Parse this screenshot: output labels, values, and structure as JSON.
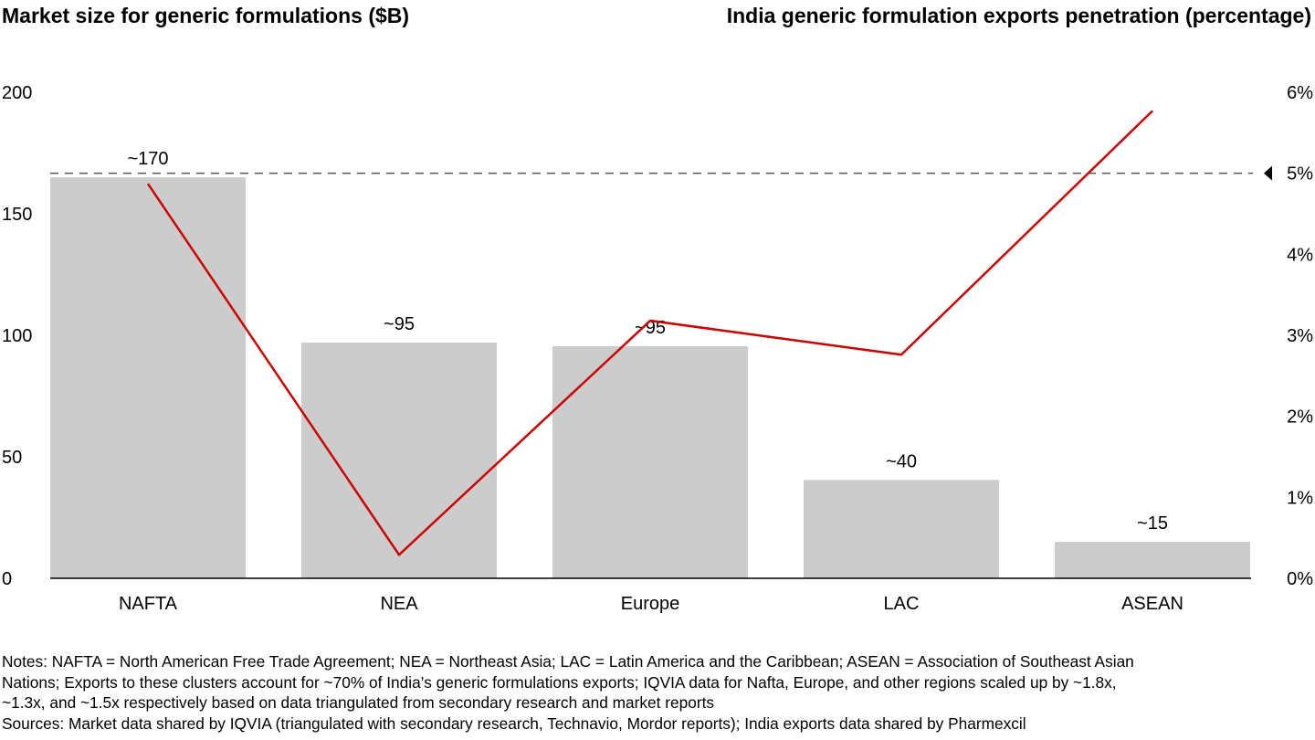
{
  "chart_data": {
    "type": "bar+line",
    "title_left": "Market size for generic formulations ($B)",
    "title_right": "India generic formulation exports penetration (percentage)",
    "categories": [
      "NAFTA",
      "NEA",
      "Europe",
      "LAC",
      "ASEAN"
    ],
    "bar_series": {
      "values": [
        165,
        97,
        95.5,
        40.5,
        15
      ],
      "data_labels": [
        "~170",
        "~95",
        "~95",
        "~40",
        "~15"
      ],
      "color": "#cccccc",
      "axis": "left"
    },
    "line_series": {
      "values": [
        4.87,
        0.29,
        3.18,
        2.76,
        5.77
      ],
      "color": "#cc0000",
      "axis": "right"
    },
    "left_axis": {
      "ylim": [
        0,
        200
      ],
      "ticks": [
        "0",
        "50",
        "100",
        "150",
        "200"
      ]
    },
    "right_axis": {
      "ylim": [
        0,
        6
      ],
      "ticks": [
        "0%",
        "1%",
        "2%",
        "3%",
        "4%",
        "5%",
        "6%"
      ]
    },
    "reference_line": {
      "value": 5,
      "style": "dashed",
      "marker": "left-triangle"
    },
    "grid": false
  },
  "notes": [
    "Notes: NAFTA = North American Free Trade Agreement; NEA = Northeast Asia; LAC = Latin America and the Caribbean; ASEAN = Association of Southeast Asian",
    "Nations; Exports to these clusters account for ~70% of India’s generic formulations exports; IQVIA data for Nafta, Europe, and other regions scaled up by ~1.8x,",
    "~1.3x, and ~1.5x respectively based on data triangulated from secondary research and market reports",
    "Sources: Market data shared by IQVIA (triangulated with secondary research, Technavio, Mordor reports); India exports data shared by Pharmexcil"
  ]
}
